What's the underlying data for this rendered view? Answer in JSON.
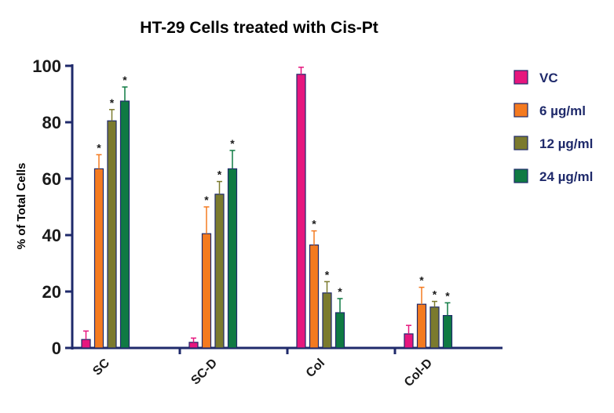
{
  "colors": {
    "axis": "#1f2a6b",
    "text": "#1a1a1a",
    "series": [
      "#e6167e",
      "#f47a20",
      "#7b7a2e",
      "#0f7a43"
    ],
    "legend_text": "#1f2a6b"
  },
  "chart_data": {
    "type": "bar",
    "title": "HT-29 Cells treated with Cis-Pt",
    "xlabel": "",
    "ylabel": "% of Total Cells",
    "ylim": [
      0,
      100
    ],
    "yticks": [
      0,
      20,
      40,
      60,
      80,
      100
    ],
    "categories": [
      "SC",
      "SC-D",
      "Col",
      "Col-D"
    ],
    "legend_position": "right",
    "grid": false,
    "series": [
      {
        "name": "VC",
        "values": [
          3,
          2,
          97,
          5
        ],
        "errors": [
          3,
          1.5,
          2.5,
          3
        ],
        "significant": [
          false,
          false,
          false,
          false
        ]
      },
      {
        "name": "6 µg/ml",
        "values": [
          63.5,
          40.5,
          36.5,
          15.5
        ],
        "errors": [
          5,
          9.5,
          5,
          6
        ],
        "significant": [
          true,
          true,
          true,
          true
        ]
      },
      {
        "name": "12 µg/ml",
        "values": [
          80.5,
          54.5,
          19.5,
          14.5
        ],
        "errors": [
          4,
          4.5,
          4,
          2
        ],
        "significant": [
          true,
          true,
          true,
          true
        ]
      },
      {
        "name": "24 µg/ml",
        "values": [
          87.5,
          63.5,
          12.5,
          11.5
        ],
        "errors": [
          5,
          6.5,
          5,
          4.5
        ],
        "significant": [
          true,
          true,
          true,
          true
        ]
      }
    ],
    "significance_marker": "*"
  }
}
